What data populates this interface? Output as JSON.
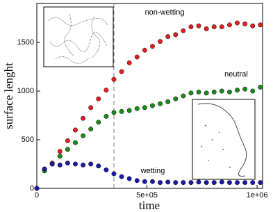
{
  "chart_data": {
    "type": "scatter",
    "xlabel": "time",
    "ylabel": "surface lenght",
    "x": [
      0,
      35000,
      70000,
      105000,
      140000,
      175000,
      210000,
      245000,
      280000,
      315000,
      350000,
      385000,
      420000,
      455000,
      490000,
      525000,
      560000,
      595000,
      630000,
      665000,
      700000,
      735000,
      770000,
      805000,
      840000,
      875000,
      910000,
      945000,
      980000,
      1015000
    ],
    "series": [
      {
        "name": "non-wetting",
        "color": "#e02020",
        "values": [
          0,
          190,
          260,
          380,
          490,
          600,
          720,
          830,
          920,
          1010,
          1120,
          1200,
          1290,
          1350,
          1420,
          1460,
          1510,
          1560,
          1580,
          1620,
          1660,
          1670,
          1640,
          1660,
          1660,
          1680,
          1700,
          1690,
          1670,
          1680
        ]
      },
      {
        "name": "neutral",
        "color": "#1a8a1a",
        "values": [
          0,
          180,
          250,
          330,
          400,
          470,
          540,
          610,
          680,
          740,
          780,
          790,
          800,
          820,
          830,
          850,
          870,
          890,
          920,
          950,
          980,
          990,
          980,
          990,
          1000,
          990,
          1010,
          1020,
          1000,
          1040
        ]
      },
      {
        "name": "wetting",
        "color": "#1a1aa8",
        "values": [
          0,
          200,
          250,
          240,
          260,
          250,
          240,
          250,
          230,
          190,
          150,
          120,
          100,
          80,
          70,
          70,
          60,
          65,
          60,
          60,
          60,
          65,
          60,
          60,
          65,
          60,
          60,
          60,
          60,
          60
        ]
      }
    ],
    "vline": 350000,
    "xlim": [
      0,
      1025000
    ],
    "ylim": [
      0,
      1900
    ],
    "xticks": [
      0,
      {
        "value": 500000,
        "label": "5e+05"
      },
      {
        "value": 1000000,
        "label": "1e+06"
      }
    ],
    "yticks": [
      0,
      500,
      1000,
      1500
    ]
  }
}
